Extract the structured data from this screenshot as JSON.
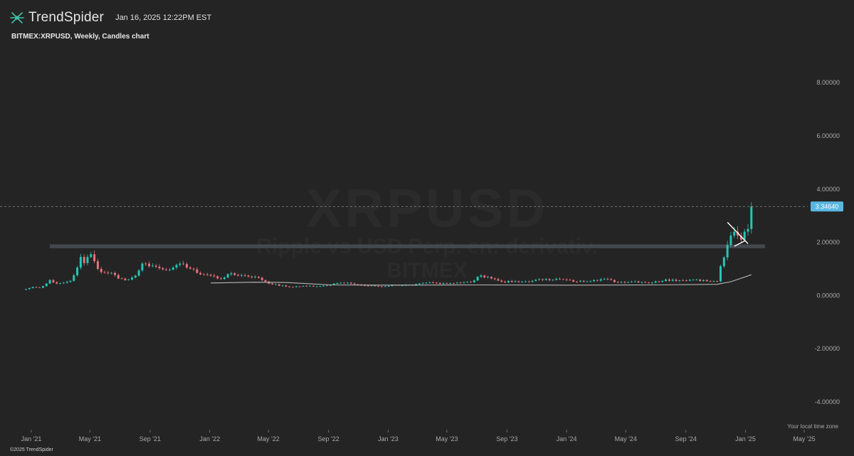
{
  "header": {
    "brand_name": "TrendSpider",
    "timestamp": "Jan 16, 2025 12:22PM EST",
    "subtitle": "BITMEX:XRPUSD, Weekly, Candles chart"
  },
  "watermark": {
    "symbol": "XRPUSD",
    "description": "Ripple vs USD Perp. en: derivativ. BITMEX"
  },
  "footer": {
    "timezone_label": "Your local time zone",
    "copyright": "©2025 TrendSpider"
  },
  "colors": {
    "background": "#242424",
    "up": "#26c6b6",
    "down": "#e8727a",
    "price_tag": "#59b7e2",
    "support_zone": "#4a5058",
    "moving_average": "#b8b8b8",
    "triangle": "#ffffff"
  },
  "chart_data": {
    "type": "candlestick",
    "title": "BITMEX:XRPUSD, Weekly, Candles chart",
    "ylim": [
      -4.8,
      9.5
    ],
    "y_ticks": [
      "8.00000",
      "6.00000",
      "4.00000",
      "2.00000",
      "0.00000",
      "-2.00000",
      "-4.00000"
    ],
    "y_tick_values": [
      8,
      6,
      4,
      2,
      0,
      -2,
      -4
    ],
    "x_ticks": [
      "Jan '21",
      "May '21",
      "Sep '21",
      "Jan '22",
      "May '22",
      "Sep '22",
      "Jan '23",
      "May '23",
      "Sep '23",
      "Jan '24",
      "May '24",
      "Sep '24",
      "Jan '25",
      "May '25"
    ],
    "x_tick_dates": [
      "2021-01-01",
      "2021-05-01",
      "2021-09-01",
      "2022-01-01",
      "2022-05-01",
      "2022-09-01",
      "2023-01-01",
      "2023-05-01",
      "2023-09-01",
      "2024-01-01",
      "2024-05-01",
      "2024-09-01",
      "2025-01-01",
      "2025-05-01"
    ],
    "last_price": 3.3464,
    "last_price_label": "3.34640",
    "support_zone": [
      1.78,
      1.92
    ],
    "close_path": [
      [
        "2020-12-21",
        0.24
      ],
      [
        "2021-01-04",
        0.32
      ],
      [
        "2021-01-18",
        0.29
      ],
      [
        "2021-02-01",
        0.45
      ],
      [
        "2021-02-08",
        0.58
      ],
      [
        "2021-02-22",
        0.45
      ],
      [
        "2021-03-08",
        0.48
      ],
      [
        "2021-03-22",
        0.55
      ],
      [
        "2021-04-05",
        1.05
      ],
      [
        "2021-04-12",
        1.45
      ],
      [
        "2021-04-19",
        1.22
      ],
      [
        "2021-05-03",
        1.55
      ],
      [
        "2021-05-17",
        1.0
      ],
      [
        "2021-05-24",
        0.88
      ],
      [
        "2021-06-14",
        0.85
      ],
      [
        "2021-06-28",
        0.64
      ],
      [
        "2021-07-19",
        0.6
      ],
      [
        "2021-08-02",
        0.75
      ],
      [
        "2021-08-16",
        1.2
      ],
      [
        "2021-09-06",
        1.12
      ],
      [
        "2021-09-27",
        0.98
      ],
      [
        "2021-10-18",
        1.05
      ],
      [
        "2021-11-08",
        1.18
      ],
      [
        "2021-12-06",
        0.85
      ],
      [
        "2022-01-03",
        0.75
      ],
      [
        "2022-01-24",
        0.62
      ],
      [
        "2022-02-07",
        0.8
      ],
      [
        "2022-03-07",
        0.76
      ],
      [
        "2022-04-04",
        0.7
      ],
      [
        "2022-05-09",
        0.42
      ],
      [
        "2022-06-13",
        0.32
      ],
      [
        "2022-07-18",
        0.36
      ],
      [
        "2022-08-15",
        0.35
      ],
      [
        "2022-09-19",
        0.47
      ],
      [
        "2022-10-17",
        0.45
      ],
      [
        "2022-11-14",
        0.37
      ],
      [
        "2022-12-19",
        0.34
      ],
      [
        "2023-01-16",
        0.4
      ],
      [
        "2023-02-20",
        0.38
      ],
      [
        "2023-03-20",
        0.48
      ],
      [
        "2023-04-24",
        0.46
      ],
      [
        "2023-05-22",
        0.48
      ],
      [
        "2023-06-19",
        0.5
      ],
      [
        "2023-07-10",
        0.75
      ],
      [
        "2023-07-24",
        0.7
      ],
      [
        "2023-08-21",
        0.52
      ],
      [
        "2023-09-25",
        0.51
      ],
      [
        "2023-10-23",
        0.55
      ],
      [
        "2023-11-20",
        0.62
      ],
      [
        "2023-12-18",
        0.61
      ],
      [
        "2024-01-22",
        0.52
      ],
      [
        "2024-02-26",
        0.58
      ],
      [
        "2024-03-18",
        0.62
      ],
      [
        "2024-04-15",
        0.5
      ],
      [
        "2024-05-20",
        0.53
      ],
      [
        "2024-06-24",
        0.48
      ],
      [
        "2024-07-22",
        0.6
      ],
      [
        "2024-08-19",
        0.57
      ],
      [
        "2024-09-23",
        0.6
      ],
      [
        "2024-10-21",
        0.52
      ],
      [
        "2024-11-04",
        0.53
      ],
      [
        "2024-11-11",
        1.1
      ],
      [
        "2024-11-18",
        1.43
      ],
      [
        "2024-11-25",
        1.9
      ],
      [
        "2024-12-02",
        2.25
      ],
      [
        "2024-12-09",
        2.4
      ],
      [
        "2024-12-16",
        2.25
      ],
      [
        "2024-12-23",
        2.1
      ],
      [
        "2024-12-30",
        2.4
      ],
      [
        "2025-01-06",
        2.5
      ],
      [
        "2025-01-13",
        3.34
      ]
    ],
    "moving_average": [
      [
        "2022-01-03",
        0.47
      ],
      [
        "2022-04-04",
        0.5
      ],
      [
        "2022-06-06",
        0.49
      ],
      [
        "2022-09-05",
        0.4
      ],
      [
        "2023-01-02",
        0.39
      ],
      [
        "2023-07-03",
        0.4
      ],
      [
        "2024-01-01",
        0.39
      ],
      [
        "2024-07-01",
        0.4
      ],
      [
        "2024-11-04",
        0.42
      ],
      [
        "2024-12-02",
        0.52
      ],
      [
        "2025-01-13",
        0.78
      ]
    ],
    "triangle": [
      [
        "2024-11-25",
        2.75
      ],
      [
        "2025-01-06",
        1.95
      ],
      [
        "2024-12-30",
        2.05
      ],
      [
        "2024-12-09",
        1.85
      ]
    ]
  }
}
